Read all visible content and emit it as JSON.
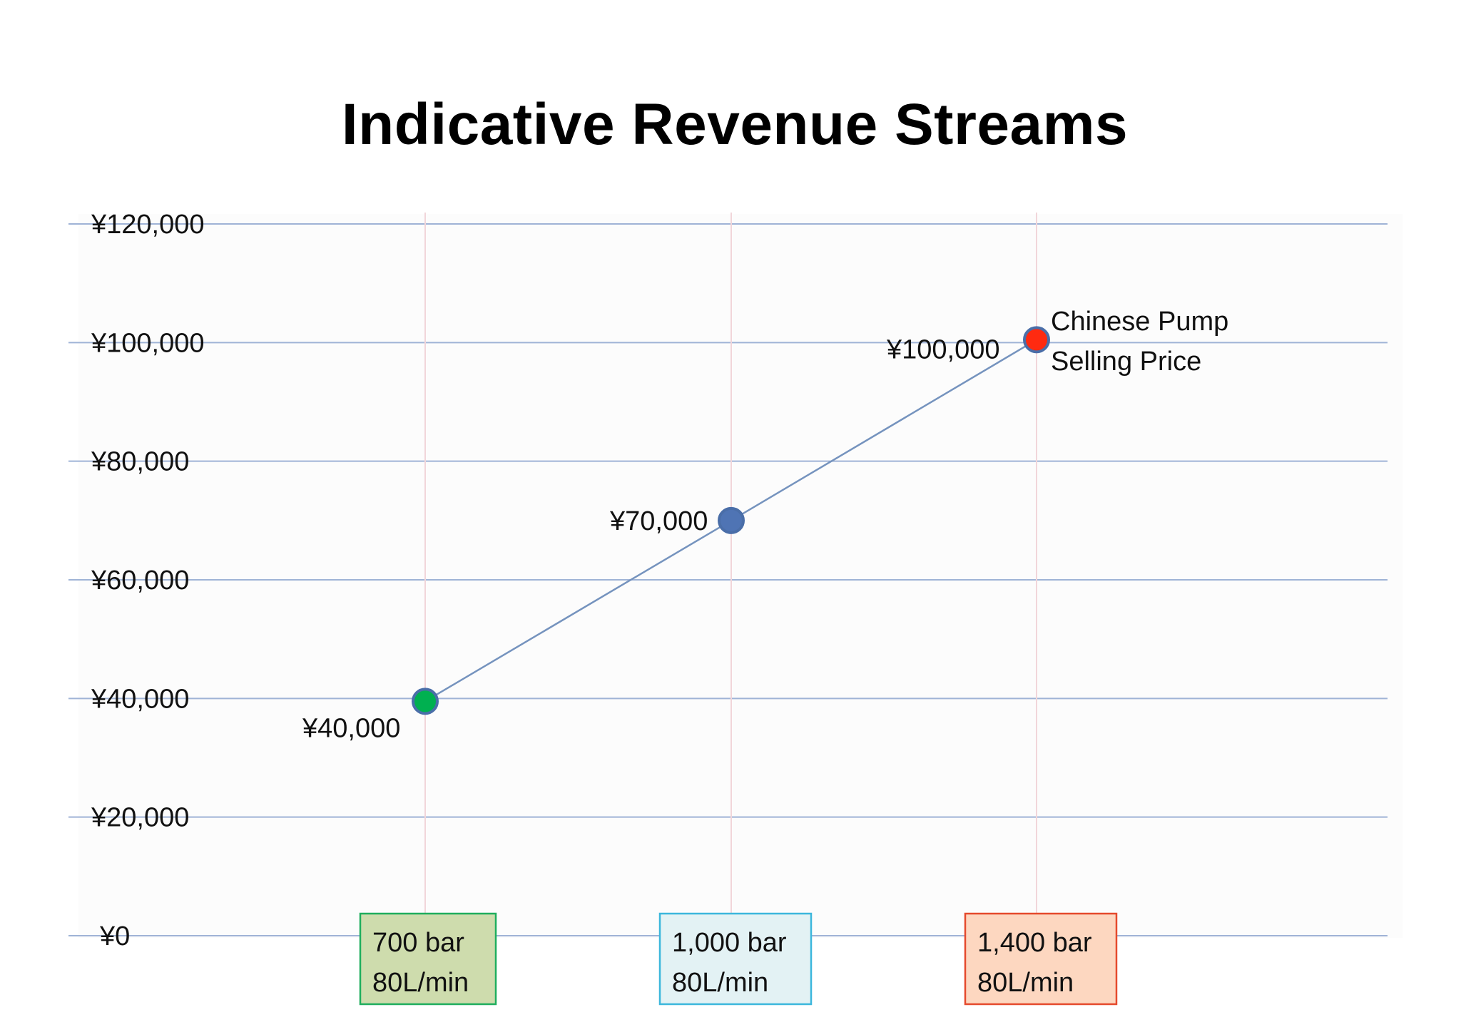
{
  "chart_data": {
    "type": "line",
    "title": "Indicative Revenue Streams",
    "xlabel": "",
    "ylabel": "",
    "ylim": [
      0,
      120000
    ],
    "yticks": [
      {
        "value": 0,
        "label": "¥0"
      },
      {
        "value": 20000,
        "label": "¥20,000"
      },
      {
        "value": 40000,
        "label": "¥40,000"
      },
      {
        "value": 60000,
        "label": "¥60,000"
      },
      {
        "value": 80000,
        "label": "¥80,000"
      },
      {
        "value": 100000,
        "label": "¥100,000"
      },
      {
        "value": 120000,
        "label": "¥120,000"
      }
    ],
    "grid": true,
    "categories": [
      {
        "line1": "700 bar",
        "line2": "80L/min",
        "box_fill": "#cedcad",
        "box_stroke": "#1fae5d"
      },
      {
        "line1": "1,000 bar",
        "line2": "80L/min",
        "box_fill": "#e3f2f4",
        "box_stroke": "#3cb7dc"
      },
      {
        "line1": "1,400 bar",
        "line2": "80L/min",
        "box_fill": "#fdd7c0",
        "box_stroke": "#e54a2d"
      }
    ],
    "series": [
      {
        "values": [
          40000,
          70000,
          100000
        ],
        "line_color": "#7593be",
        "marker_colors": [
          "#00b050",
          "#4f74b4",
          "#ff2a10"
        ],
        "marker_stroke": "#4a6ea8",
        "data_labels": [
          "¥40,000",
          "¥70,000",
          "¥100,000"
        ]
      }
    ],
    "annotation": {
      "lines": [
        "Chinese Pump",
        "Selling Price"
      ],
      "point_index": 2
    },
    "colors": {
      "hgrid": "#9fb3d6",
      "vgrid": "#f1d6da",
      "plot_bg": "#fcfcfc"
    }
  }
}
